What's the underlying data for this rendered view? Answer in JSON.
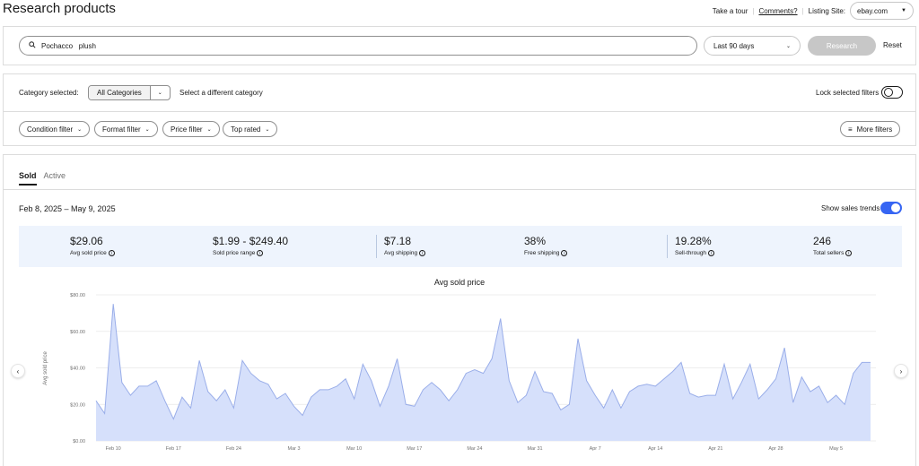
{
  "header": {
    "title": "Research products",
    "take_tour": "Take a tour",
    "comments": "Comments?",
    "listing_site_label": "Listing Site:",
    "listing_site_value": "ebay.com"
  },
  "search": {
    "query": "Pochacco   plush",
    "date_range": "Last 90 days",
    "research_button": "Research",
    "reset_link": "Reset"
  },
  "category": {
    "label": "Category selected:",
    "selected": "All Categories",
    "change_link": "Select a different category",
    "lock_label": "Lock selected filters",
    "lock_on": false
  },
  "filters": [
    {
      "label": "Condition filter"
    },
    {
      "label": "Format filter"
    },
    {
      "label": "Price filter"
    },
    {
      "label": "Top rated"
    }
  ],
  "more_filters": "More filters",
  "tabs": [
    {
      "label": "Sold",
      "active": true
    },
    {
      "label": "Active",
      "active": false
    }
  ],
  "date_range_label": "Feb 8, 2025 – May 9, 2025",
  "show_trends_label": "Show sales trends",
  "show_trends_on": true,
  "stats": [
    {
      "value": "$29.06",
      "label": "Avg sold price"
    },
    {
      "value": "$1.99 - $249.40",
      "label": "Sold price range"
    },
    {
      "value": "$7.18",
      "label": "Avg shipping"
    },
    {
      "value": "38%",
      "label": "Free shipping"
    },
    {
      "value": "19.28%",
      "label": "Sell-through"
    },
    {
      "value": "246",
      "label": "Total sellers"
    }
  ],
  "colors": {
    "accent": "#3665f3",
    "chart_fill": "#d6e0fb",
    "chart_line": "#9aaee9",
    "stats_bg": "#eef4fd"
  },
  "chart_data": {
    "type": "area",
    "title": "Avg sold price",
    "ylabel": "Avg sold price",
    "xlabel": "",
    "ylim": [
      0,
      80
    ],
    "yticks": [
      "$0.00",
      "$20.00",
      "$40.00",
      "$60.00",
      "$80.00"
    ],
    "ytick_values": [
      0,
      20,
      40,
      60,
      80
    ],
    "xticks": [
      "Feb 10",
      "Feb 17",
      "Feb 24",
      "Mar 3",
      "Mar 10",
      "Mar 17",
      "Mar 24",
      "Mar 31",
      "Apr 7",
      "Apr 14",
      "Apr 21",
      "Apr 28",
      "May 5"
    ],
    "x_start": "Feb 8, 2025",
    "grid": true,
    "series": [
      {
        "values": [
          22,
          15,
          75,
          32,
          25,
          30,
          30,
          33,
          22,
          12,
          24,
          18,
          44,
          27,
          22,
          28,
          18,
          44,
          37,
          33,
          31,
          23,
          26,
          19,
          14,
          24,
          28,
          28,
          30,
          34,
          23,
          42,
          33,
          19,
          30,
          45,
          20,
          19,
          28,
          32,
          28,
          22,
          28,
          37,
          39,
          37,
          45,
          67,
          33,
          21,
          25,
          38,
          27,
          26,
          17,
          20,
          56,
          33,
          25,
          18,
          28,
          18,
          27,
          30,
          31,
          30,
          34,
          38,
          43,
          26,
          24,
          25,
          25,
          42,
          23,
          32,
          42,
          23,
          28,
          34,
          51,
          21,
          35,
          27,
          30,
          21,
          25,
          20,
          37,
          43,
          43
        ]
      }
    ]
  }
}
